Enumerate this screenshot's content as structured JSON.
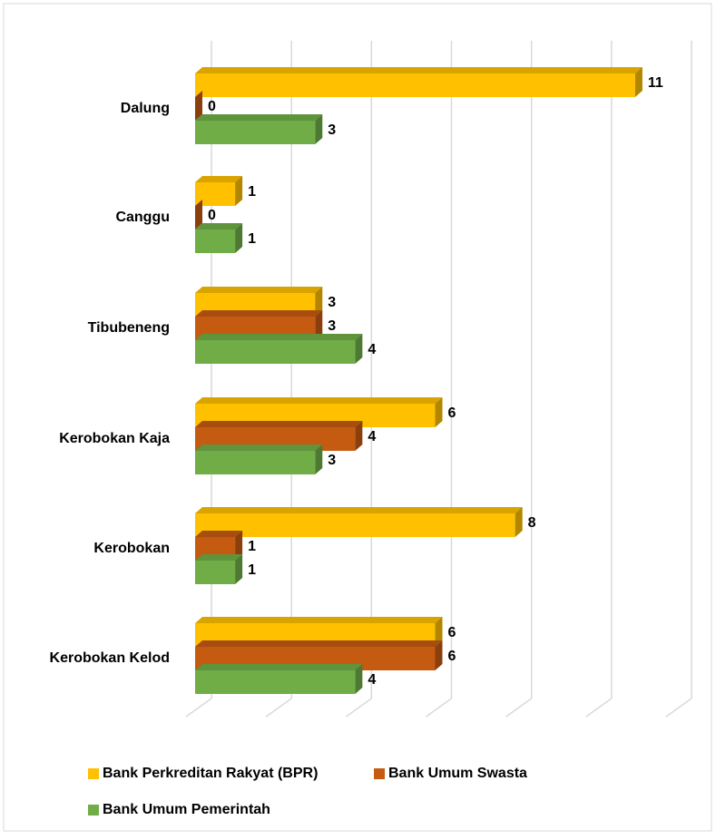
{
  "chart_data": {
    "type": "bar3d_horizontal",
    "categories": [
      "Dalung",
      "Canggu",
      "Tibubeneng",
      "Kerobokan Kaja",
      "Kerobokan",
      "Kerobokan Kelod"
    ],
    "series": [
      {
        "name": "Bank Perkreditan Rakyat (BPR)",
        "color": "#FFC000",
        "values": [
          11,
          1,
          3,
          6,
          8,
          6
        ]
      },
      {
        "name": "Bank Umum Swasta",
        "color": "#C55A11",
        "values": [
          0,
          0,
          3,
          4,
          1,
          6
        ]
      },
      {
        "name": "Bank Umum Pemerintah",
        "color": "#70AD47",
        "values": [
          3,
          1,
          4,
          3,
          1,
          4
        ]
      }
    ],
    "xlim": [
      0,
      12
    ],
    "xticks": [
      0,
      2,
      4,
      6,
      8,
      10,
      12
    ],
    "grid": true
  }
}
